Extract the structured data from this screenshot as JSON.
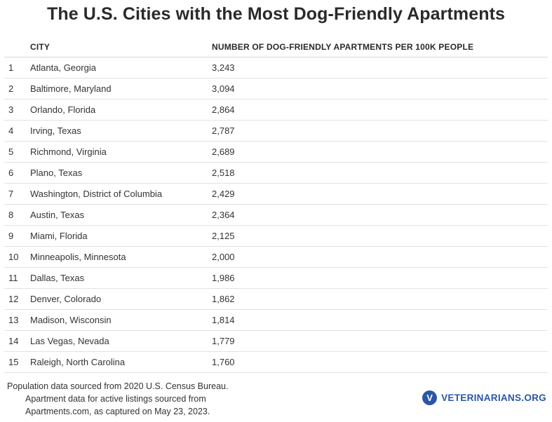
{
  "chart_data": {
    "type": "table",
    "title": "The U.S. Cities with the Most Dog-Friendly Apartments",
    "columns": [
      "CITY",
      "NUMBER OF DOG-FRIENDLY APARTMENTS PER 100K PEOPLE"
    ],
    "rows": [
      {
        "rank": "1",
        "city": "Atlanta, Georgia",
        "value": "3,243"
      },
      {
        "rank": "2",
        "city": "Baltimore, Maryland",
        "value": "3,094"
      },
      {
        "rank": "3",
        "city": "Orlando, Florida",
        "value": "2,864"
      },
      {
        "rank": "4",
        "city": "Irving, Texas",
        "value": "2,787"
      },
      {
        "rank": "5",
        "city": "Richmond, Virginia",
        "value": "2,689"
      },
      {
        "rank": "6",
        "city": "Plano, Texas",
        "value": "2,518"
      },
      {
        "rank": "7",
        "city": "Washington, District of Columbia",
        "value": "2,429"
      },
      {
        "rank": "8",
        "city": "Austin, Texas",
        "value": "2,364"
      },
      {
        "rank": "9",
        "city": "Miami, Florida",
        "value": "2,125"
      },
      {
        "rank": "10",
        "city": "Minneapolis, Minnesota",
        "value": "2,000"
      },
      {
        "rank": "11",
        "city": "Dallas, Texas",
        "value": "1,986"
      },
      {
        "rank": "12",
        "city": "Denver, Colorado",
        "value": "1,862"
      },
      {
        "rank": "13",
        "city": "Madison, Wisconsin",
        "value": "1,814"
      },
      {
        "rank": "14",
        "city": "Las Vegas, Nevada",
        "value": "1,779"
      },
      {
        "rank": "15",
        "city": "Raleigh, North Carolina",
        "value": "1,760"
      }
    ]
  },
  "footnote": {
    "line1": "Population data sourced from 2020 U.S. Census Bureau.",
    "line2": "Apartment data for active listings sourced from",
    "line3": "Apartments.com, as captured on May 23, 2023."
  },
  "brand": {
    "mark": "V",
    "name": "VETERINARIANS.ORG",
    "color": "#2b56a7",
    "icon": "veterinarians-logo-icon"
  }
}
